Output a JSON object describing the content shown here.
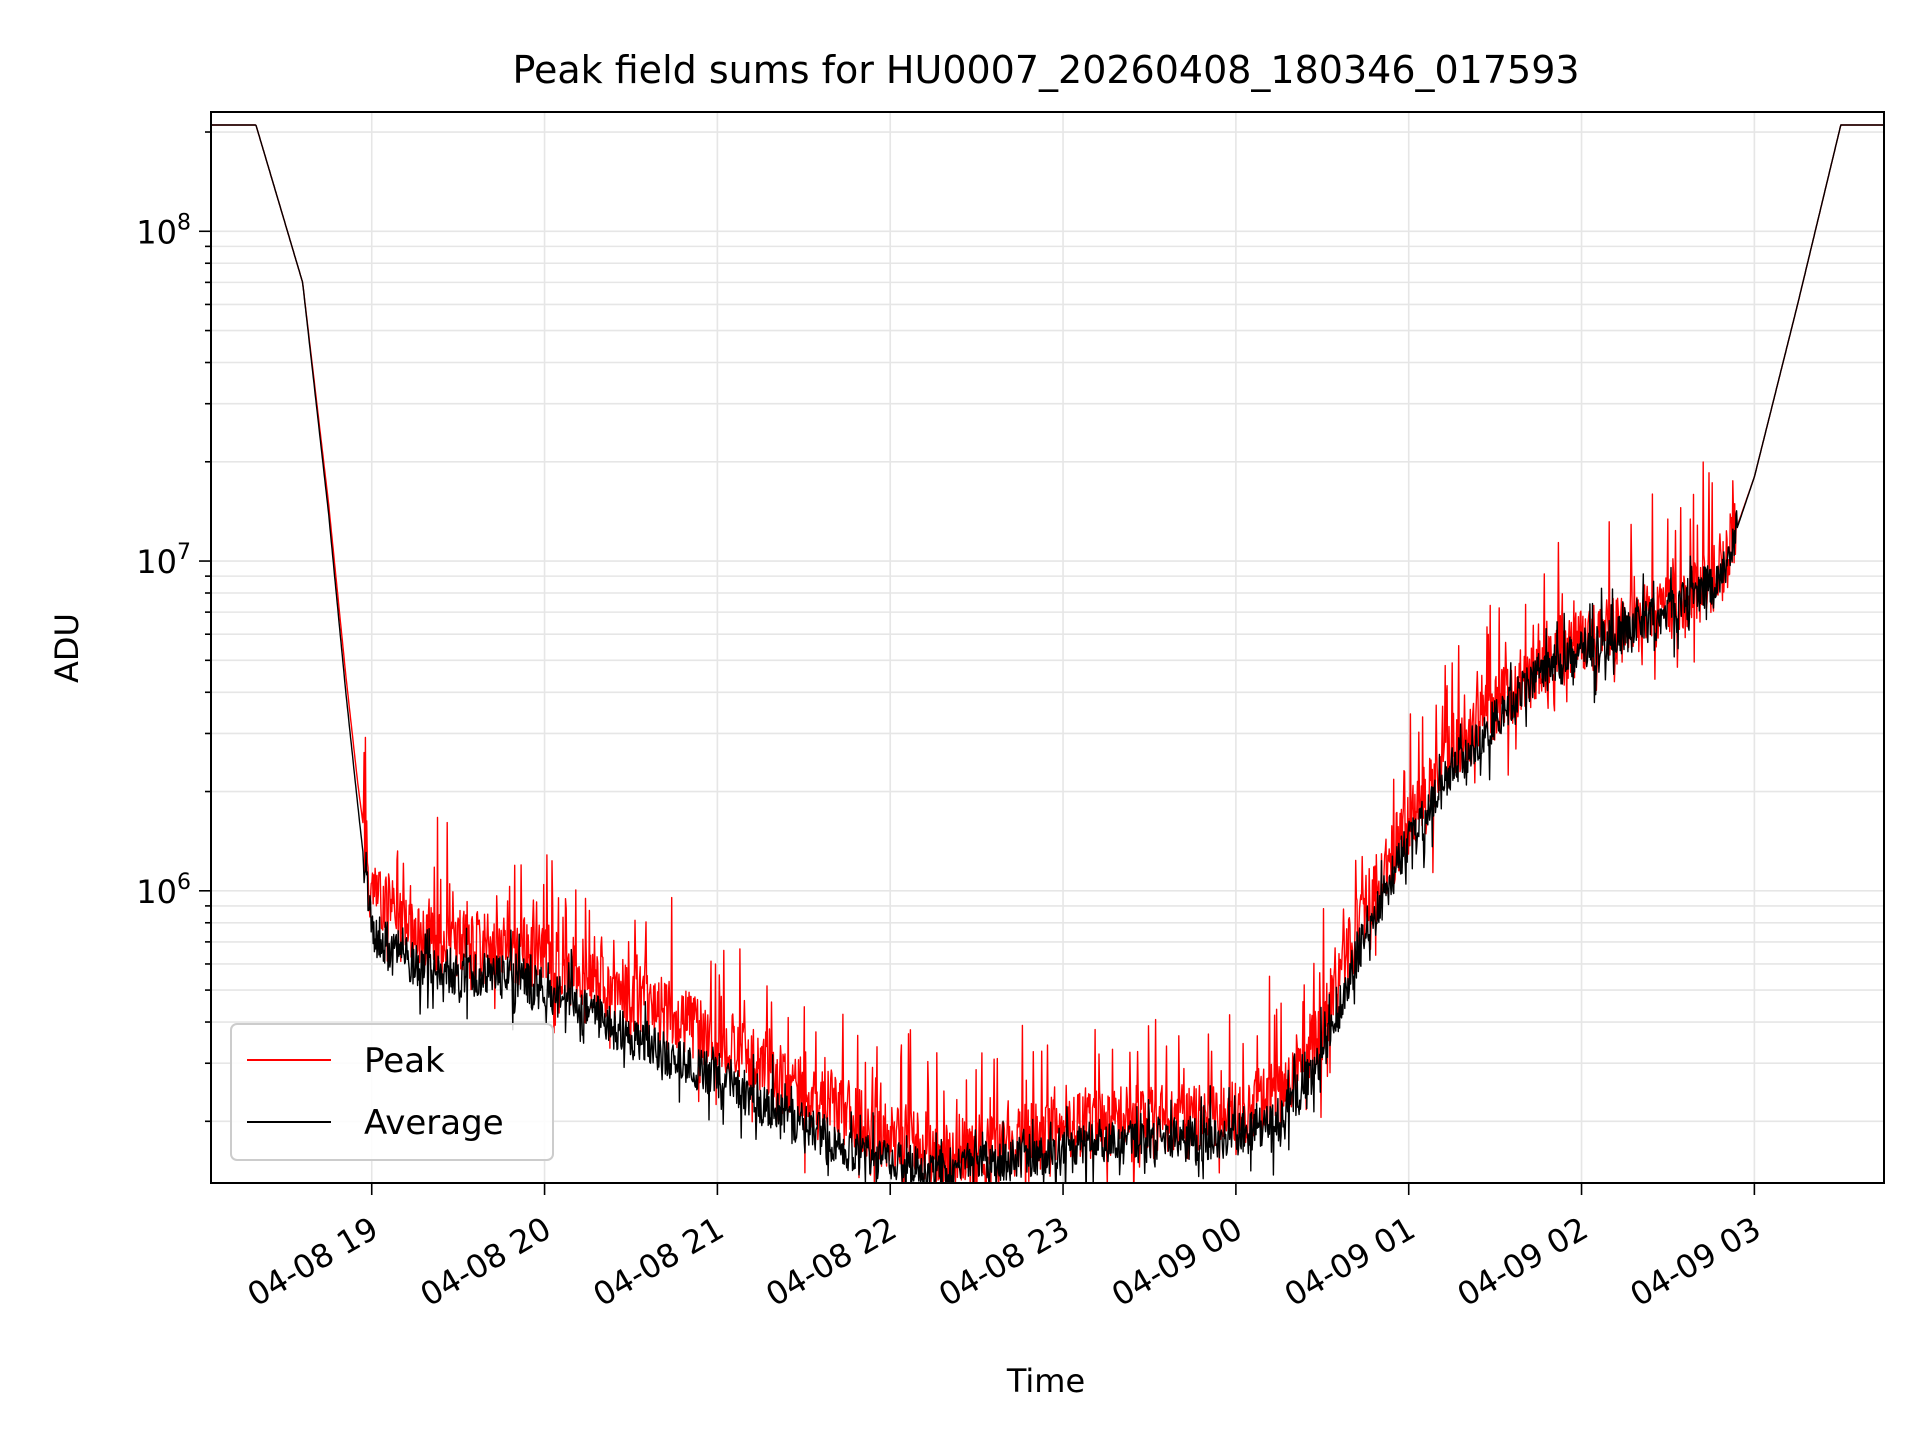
{
  "chart_data": {
    "type": "line",
    "title": "Peak field sums for HU0007_20260408_180346_017593",
    "xlabel": "Time",
    "ylabel": "ADU",
    "yscale": "log",
    "ylim": [
      130000,
      230000000
    ],
    "xlim_hours": [
      18.07,
      27.75
    ],
    "grid": true,
    "legend_position": "lower-left",
    "x_ticks": [
      {
        "hour": 19,
        "label": "04-08 19"
      },
      {
        "hour": 20,
        "label": "04-08 20"
      },
      {
        "hour": 21,
        "label": "04-08 21"
      },
      {
        "hour": 22,
        "label": "04-08 22"
      },
      {
        "hour": 23,
        "label": "04-08 23"
      },
      {
        "hour": 24,
        "label": "04-09 00"
      },
      {
        "hour": 25,
        "label": "04-09 01"
      },
      {
        "hour": 26,
        "label": "04-09 02"
      },
      {
        "hour": 27,
        "label": "04-09 03"
      }
    ],
    "y_ticks": [
      {
        "value": 1000000,
        "base": "10",
        "exp": "6"
      },
      {
        "value": 10000000,
        "base": "10",
        "exp": "7"
      },
      {
        "value": 100000000,
        "base": "10",
        "exp": "8"
      }
    ],
    "series": [
      {
        "name": "Peak",
        "color": "#ff0000",
        "noise_amplitude": 0.35,
        "x": [
          18.07,
          18.33,
          18.6,
          18.75,
          18.85,
          18.92,
          19.0,
          19.25,
          19.5,
          19.75,
          20.0,
          20.25,
          20.5,
          20.75,
          21.0,
          21.25,
          21.5,
          21.75,
          22.0,
          22.25,
          22.5,
          22.75,
          23.0,
          23.25,
          23.5,
          23.75,
          24.0,
          24.25,
          24.5,
          24.75,
          25.0,
          25.25,
          25.5,
          25.75,
          26.0,
          26.25,
          26.5,
          26.8,
          27.0,
          27.25,
          27.5,
          27.75
        ],
        "values": [
          210000000,
          210000000,
          70000000,
          15000000,
          4500000,
          2100000,
          1000000,
          740000,
          690000,
          680000,
          630000,
          560000,
          480000,
          410000,
          360000,
          300000,
          250000,
          210000,
          180000,
          160000,
          165000,
          175000,
          190000,
          200000,
          205000,
          205000,
          210000,
          240000,
          380000,
          900000,
          1600000,
          2600000,
          3600000,
          4800000,
          5600000,
          6300000,
          7200000,
          9000000,
          18000000,
          60000000,
          210000000,
          210000000
        ]
      },
      {
        "name": "Average",
        "color": "#000000",
        "noise_amplitude": 0.22,
        "x": [
          18.07,
          18.33,
          18.6,
          18.75,
          18.85,
          18.92,
          19.0,
          19.25,
          19.5,
          19.75,
          20.0,
          20.25,
          20.5,
          20.75,
          21.0,
          21.25,
          21.5,
          21.75,
          22.0,
          22.25,
          22.5,
          22.75,
          23.0,
          23.25,
          23.5,
          23.75,
          24.0,
          24.25,
          24.5,
          24.75,
          25.0,
          25.25,
          25.5,
          25.75,
          26.0,
          26.25,
          26.5,
          26.8,
          27.0,
          27.25,
          27.5,
          27.75
        ],
        "values": [
          210000000,
          210000000,
          70000000,
          14000000,
          4000000,
          1800000,
          750000,
          600000,
          560000,
          550000,
          500000,
          430000,
          360000,
          310000,
          270000,
          225000,
          195000,
          165000,
          150000,
          140000,
          148000,
          155000,
          165000,
          170000,
          175000,
          175000,
          180000,
          200000,
          310000,
          750000,
          1400000,
          2300000,
          3300000,
          4500000,
          5300000,
          6000000,
          7000000,
          8800000,
          18000000,
          60000000,
          210000000,
          210000000
        ]
      }
    ]
  }
}
